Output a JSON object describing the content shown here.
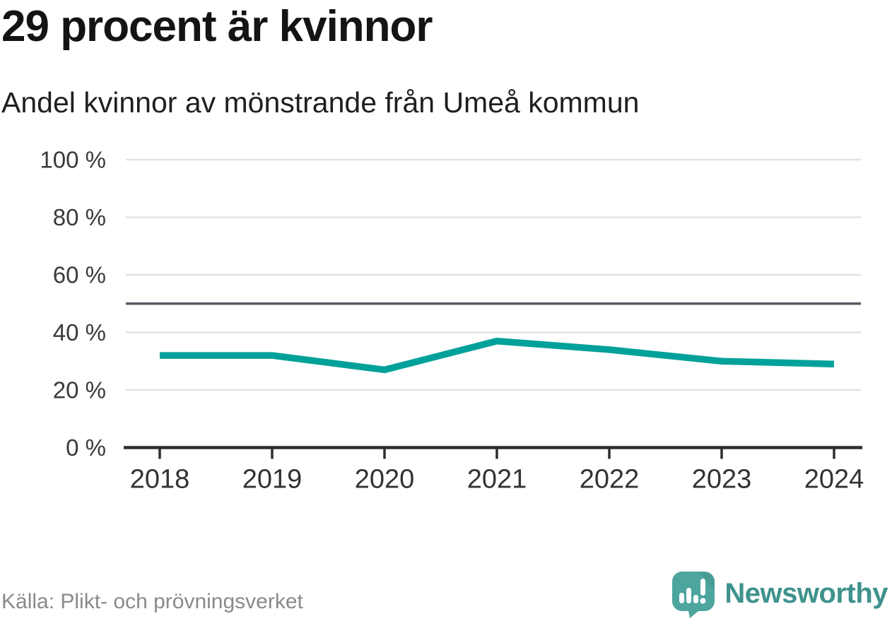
{
  "header": {
    "title": "29 procent är kvinnor",
    "subtitle": "Andel kvinnor av mönstrande från Umeå kommun"
  },
  "chart_data": {
    "type": "line",
    "title": "29 procent är kvinnor",
    "subtitle": "Andel kvinnor av mönstrande från Umeå kommun",
    "categories": [
      "2018",
      "2019",
      "2020",
      "2021",
      "2022",
      "2023",
      "2024"
    ],
    "series": [
      {
        "name": "Andel kvinnor av mönstrande",
        "values": [
          32,
          32,
          27,
          37,
          34,
          30,
          29
        ]
      }
    ],
    "xlabel": "",
    "ylabel": "",
    "ylim": [
      0,
      100
    ],
    "y_ticks": [
      {
        "value": 0,
        "label": "0 %"
      },
      {
        "value": 20,
        "label": "20 %"
      },
      {
        "value": 40,
        "label": "40 %"
      },
      {
        "value": 60,
        "label": "60 %"
      },
      {
        "value": 80,
        "label": "80 %"
      },
      {
        "value": 100,
        "label": "100 %"
      }
    ],
    "reference_line": 50,
    "grid": true,
    "legend_position": "none"
  },
  "colors": {
    "line": "#00a19a",
    "gridline": "#e2e2e2",
    "reference_line": "#5a5a64",
    "axis": "#2e2e2e",
    "y_tick_label": "#3a3a3a",
    "x_tick_label": "#333333",
    "logo_bubble": "#4da59e",
    "logo_bubble_shade": "#43968f",
    "brand_text": "#3f928d"
  },
  "footer": {
    "source": "Källa: Plikt- och prövningsverket",
    "brand": "Newsworthy"
  }
}
